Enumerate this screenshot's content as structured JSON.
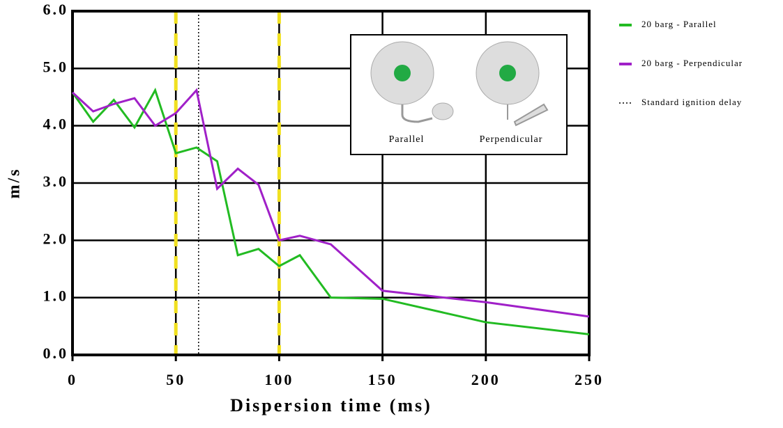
{
  "chart_data": {
    "type": "line",
    "x_label": "Dispersion time (ms)",
    "y_label": "m/s",
    "x": [
      0,
      10,
      20,
      30,
      40,
      50,
      60,
      70,
      80,
      90,
      100,
      110,
      125,
      150,
      200,
      250
    ],
    "series": [
      {
        "name": "20 barg - Parallel",
        "color": "#22bb22",
        "values": [
          4.58,
          4.07,
          4.45,
          3.97,
          4.62,
          3.52,
          3.62,
          3.38,
          1.74,
          1.85,
          1.55,
          1.74,
          1.0,
          0.98,
          0.57,
          0.36
        ]
      },
      {
        "name": "20 barg - Perpendicular",
        "color": "#a020c8",
        "values": [
          4.58,
          4.25,
          4.38,
          4.48,
          4.0,
          4.22,
          4.62,
          2.9,
          3.25,
          2.97,
          2.0,
          2.08,
          1.93,
          1.12,
          0.92,
          0.67
        ]
      }
    ],
    "reference_lines": [
      {
        "name": "Standard ignition delay",
        "x": 61,
        "color": "#000000"
      }
    ],
    "highlight_x": [
      50,
      100
    ],
    "highlight_color": "#f0e020",
    "xlim": [
      0,
      250
    ],
    "xticks": [
      0,
      50,
      100,
      150,
      200,
      250
    ],
    "ylim": [
      0,
      6
    ],
    "yticks": [
      {
        "value": 0,
        "label": "0.0"
      },
      {
        "value": 1,
        "label": "1.0"
      },
      {
        "value": 2,
        "label": "2.0"
      },
      {
        "value": 3,
        "label": "3.0"
      },
      {
        "value": 4,
        "label": "4.0"
      },
      {
        "value": 5,
        "label": "5.0"
      },
      {
        "value": 6,
        "label": "6.0"
      }
    ],
    "grid": true,
    "legend": "right",
    "inset_labels": [
      "Parallel",
      "Perpendicular"
    ]
  }
}
